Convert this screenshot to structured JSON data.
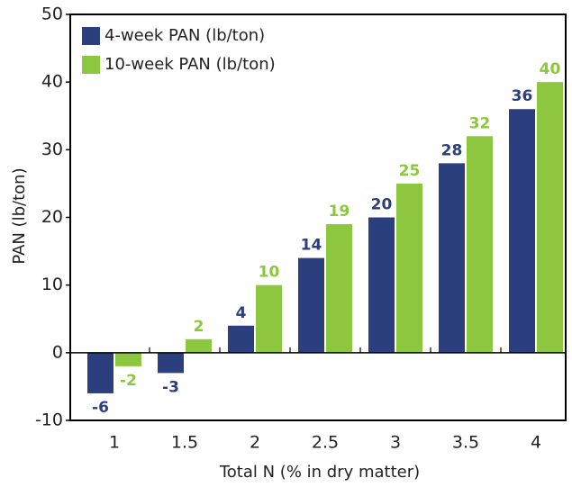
{
  "chart_data": {
    "type": "bar",
    "x_label": "Total N (% in dry matter)",
    "y_label": "PAN (lb/ton)",
    "categories": [
      "1",
      "1.5",
      "2",
      "2.5",
      "3",
      "3.5",
      "4"
    ],
    "series": [
      {
        "name": "4-week PAN (lb/ton)",
        "color": "#2b3f7e",
        "values": [
          -6,
          -3,
          4,
          14,
          20,
          28,
          36
        ]
      },
      {
        "name": "10-week PAN (lb/ton)",
        "color": "#8dc63f",
        "values": [
          -2,
          2,
          10,
          19,
          25,
          32,
          40
        ]
      }
    ],
    "ylim": [
      -10,
      50
    ],
    "yticks": [
      -10,
      0,
      10,
      20,
      30,
      40,
      50
    ],
    "legend": "upper left"
  }
}
